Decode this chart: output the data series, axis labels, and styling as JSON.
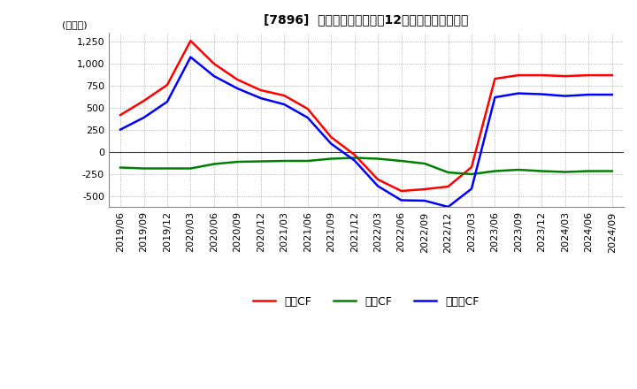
{
  "title": "[7896]  キャッシュフローの12か月移動合計の推移",
  "ylabel": "(百万円)",
  "ylim": [
    -625,
    1350
  ],
  "yticks": [
    -500,
    -250,
    0,
    250,
    500,
    750,
    1000,
    1250
  ],
  "bg_color": "#ffffff",
  "plot_bg_color": "#ffffff",
  "dates": [
    "2019/06",
    "2019/09",
    "2019/12",
    "2020/03",
    "2020/06",
    "2020/09",
    "2020/12",
    "2021/03",
    "2021/06",
    "2021/09",
    "2021/12",
    "2022/03",
    "2022/06",
    "2022/09",
    "2022/12",
    "2023/03",
    "2023/06",
    "2023/09",
    "2023/12",
    "2024/03",
    "2024/06",
    "2024/09"
  ],
  "operating_cf": [
    420,
    580,
    760,
    1260,
    1000,
    820,
    700,
    640,
    490,
    170,
    -30,
    -310,
    -440,
    -420,
    -390,
    -170,
    830,
    870,
    870,
    860,
    870,
    870
  ],
  "investing_cf": [
    -175,
    -185,
    -185,
    -185,
    -135,
    -110,
    -105,
    -100,
    -100,
    -75,
    -65,
    -75,
    -100,
    -130,
    -230,
    -250,
    -215,
    -200,
    -215,
    -225,
    -215,
    -215
  ],
  "free_cf": [
    255,
    390,
    570,
    1075,
    860,
    720,
    610,
    540,
    390,
    95,
    -95,
    -385,
    -545,
    -550,
    -620,
    -415,
    620,
    665,
    655,
    635,
    650,
    650
  ],
  "line_colors": {
    "operating": "#ff0000",
    "investing": "#008000",
    "free": "#0000ff"
  },
  "legend_labels": [
    "営業CF",
    "投資CF",
    "フリーCF"
  ],
  "grid_color": "#888888",
  "line_width": 1.8
}
